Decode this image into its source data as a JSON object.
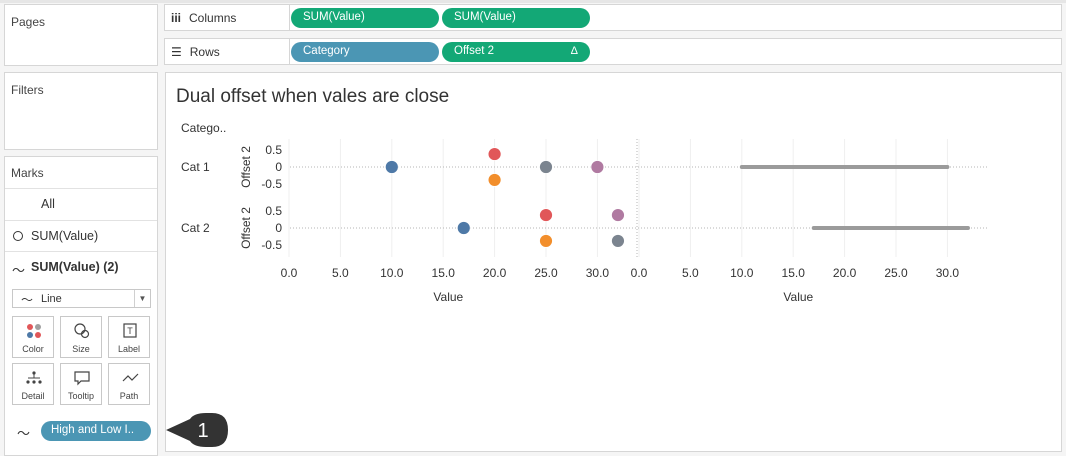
{
  "pages": {
    "title": "Pages"
  },
  "filters": {
    "title": "Filters"
  },
  "marks": {
    "title": "Marks",
    "all": "All",
    "cards": [
      "SUM(Value)",
      "SUM(Value) (2)"
    ],
    "mark_type": "Line",
    "buttons": [
      "Color",
      "Size",
      "Label",
      "Detail",
      "Tooltip",
      "Path"
    ],
    "path_pill": "High and Low I.."
  },
  "columns": {
    "label": "Columns",
    "pills": [
      "SUM(Value)",
      "SUM(Value)"
    ]
  },
  "rows": {
    "label": "Rows",
    "pills": [
      "Category",
      "Offset 2"
    ],
    "delta": "Δ"
  },
  "view": {
    "title": "Dual offset when vales are close",
    "row_header": "Catego..",
    "rows": [
      "Cat 1",
      "Cat 2"
    ],
    "y_axis_label": "Offset 2",
    "y_ticks": [
      "0.5",
      "0",
      "-0.5"
    ],
    "x_ticks": [
      "0.0",
      "5.0",
      "10.0",
      "15.0",
      "20.0",
      "25.0",
      "30.0"
    ],
    "x_axis_label": "Value"
  },
  "callout": {
    "number": "1"
  },
  "colors": {
    "green": "#13a876",
    "blue_pill": "#4b96b4",
    "dot_blue": "#4e79a7",
    "dot_red": "#e15759",
    "dot_orange": "#f28e2b",
    "dot_gray": "#7b848f",
    "dot_purple": "#b07aa1",
    "line_gray": "#9b9b9b"
  },
  "chart_data": [
    {
      "type": "scatter",
      "x_range": [
        0,
        35
      ],
      "y_range": [
        -0.8,
        0.8
      ],
      "rows": [
        {
          "category": "Cat 1",
          "points": [
            {
              "x": 10,
              "y": 0,
              "color": "blue"
            },
            {
              "x": 20,
              "y": 0.5,
              "color": "red"
            },
            {
              "x": 20,
              "y": -0.5,
              "color": "orange"
            },
            {
              "x": 25,
              "y": 0,
              "color": "gray"
            },
            {
              "x": 30,
              "y": 0,
              "color": "purple"
            }
          ]
        },
        {
          "category": "Cat 2",
          "points": [
            {
              "x": 17,
              "y": 0,
              "color": "blue"
            },
            {
              "x": 25,
              "y": 0.5,
              "color": "red"
            },
            {
              "x": 25,
              "y": -0.5,
              "color": "orange"
            },
            {
              "x": 32,
              "y": 0.5,
              "color": "purple"
            },
            {
              "x": 32,
              "y": -0.5,
              "color": "gray"
            }
          ]
        }
      ]
    },
    {
      "type": "line",
      "x_range": [
        0,
        35
      ],
      "rows": [
        {
          "category": "Cat 1",
          "low": 10,
          "high": 30
        },
        {
          "category": "Cat 2",
          "low": 17,
          "high": 32
        }
      ]
    }
  ]
}
